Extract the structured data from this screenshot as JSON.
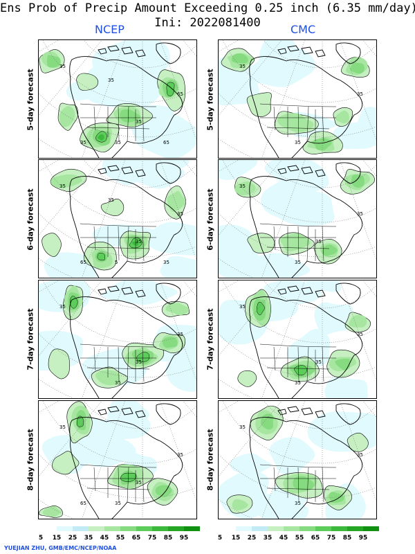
{
  "title": {
    "line1": "Ens Prob of Precip Amount Exceeding 0.25 inch (6.35 mm/day)",
    "line2": "Ini: 2022081400"
  },
  "models": [
    "NCEP",
    "CMC"
  ],
  "rows": [
    {
      "label": "5-day forecast"
    },
    {
      "label": "6-day forecast"
    },
    {
      "label": "7-day forecast"
    },
    {
      "label": "8-day forecast"
    }
  ],
  "panels": [
    {
      "model": "NCEP",
      "row": "5-day forecast",
      "contour_labels": [
        "35",
        "35",
        "65",
        "35",
        "35",
        "65",
        "35"
      ]
    },
    {
      "model": "CMC",
      "row": "5-day forecast",
      "contour_labels": [
        "35",
        "35",
        "35"
      ]
    },
    {
      "model": "NCEP",
      "row": "6-day forecast",
      "contour_labels": [
        "35",
        "5",
        "35",
        "35",
        "65",
        "35",
        "35"
      ]
    },
    {
      "model": "CMC",
      "row": "6-day forecast",
      "contour_labels": [
        "35",
        "35",
        "35",
        "35"
      ]
    },
    {
      "model": "NCEP",
      "row": "7-day forecast",
      "contour_labels": [
        "35",
        "35",
        "35",
        "35"
      ]
    },
    {
      "model": "CMC",
      "row": "7-day forecast",
      "contour_labels": [
        "35",
        "35",
        "35",
        "35"
      ]
    },
    {
      "model": "NCEP",
      "row": "8-day forecast",
      "contour_labels": [
        "35",
        "35",
        "35",
        "35",
        "65"
      ]
    },
    {
      "model": "CMC",
      "row": "8-day forecast",
      "contour_labels": [
        "35",
        "35",
        "35"
      ]
    }
  ],
  "legend": {
    "ticks": [
      "5",
      "15",
      "25",
      "35",
      "45",
      "55",
      "65",
      "75",
      "85",
      "95"
    ],
    "colors": [
      "#ffffff",
      "#e0fafe",
      "#c2ebf5",
      "#c6f0c2",
      "#a6e6a0",
      "#86da80",
      "#5ccc5a",
      "#3cb83c",
      "#24a524",
      "#119111"
    ]
  },
  "credit": "YUEJIAN ZHU, GMB/EMC/NCEP/NOAA"
}
